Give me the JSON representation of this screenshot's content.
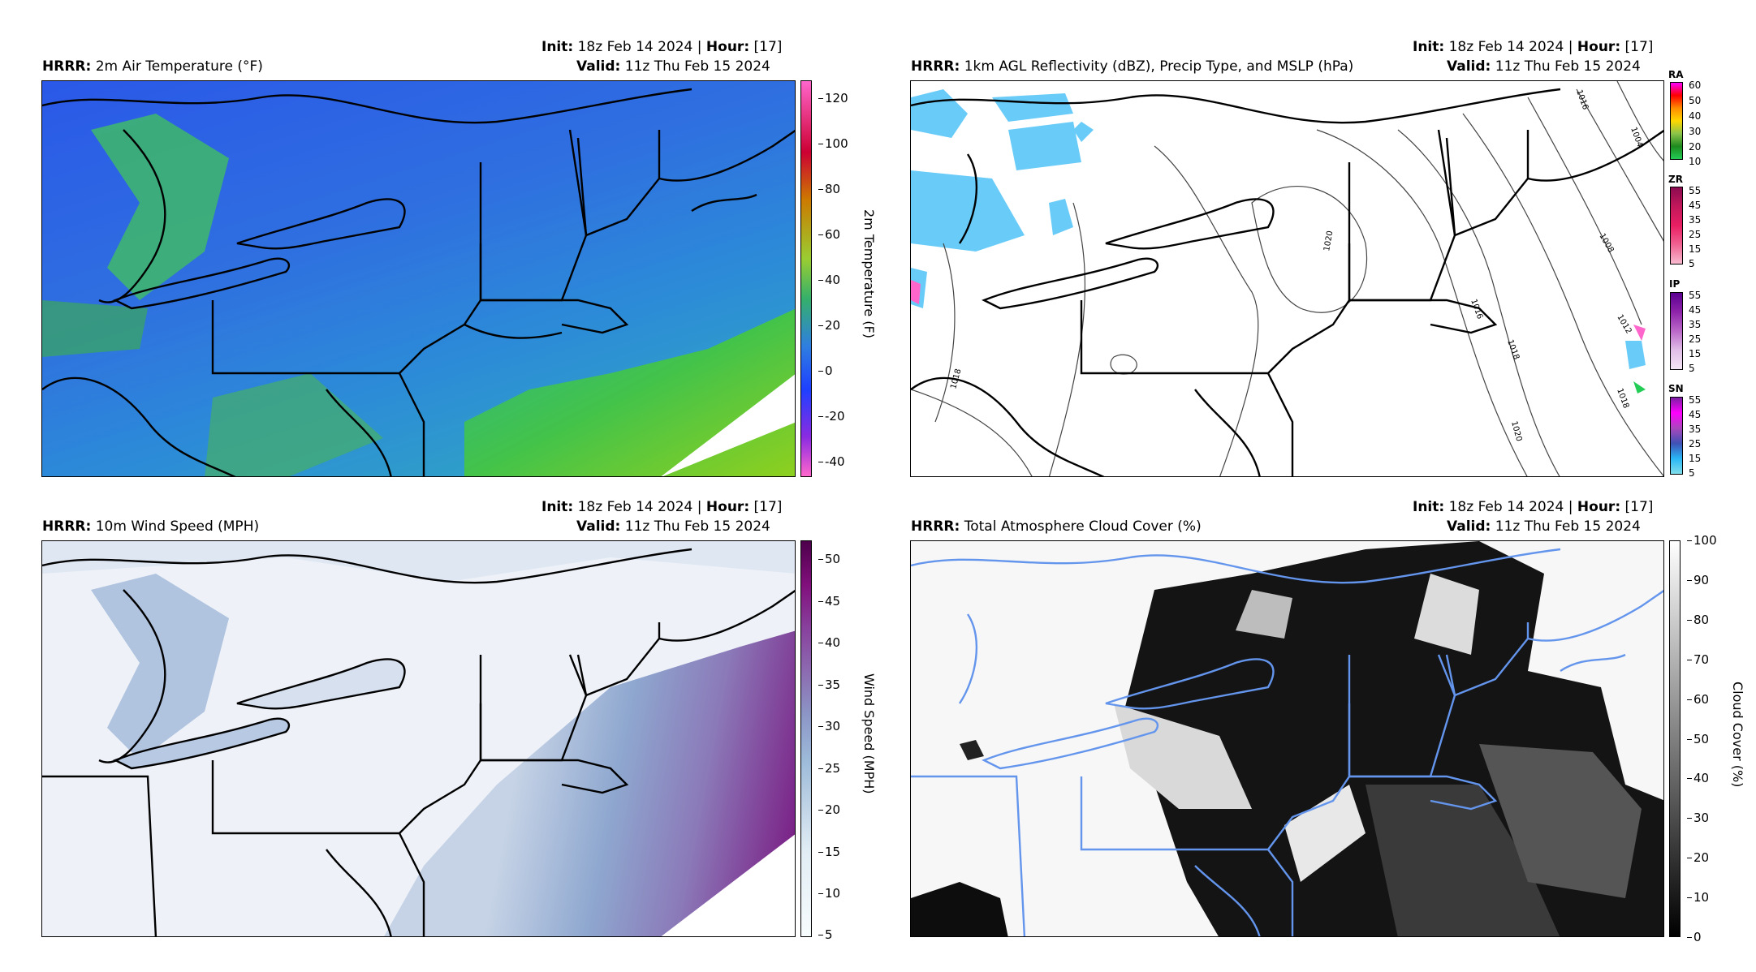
{
  "panels": {
    "temp": {
      "model": "HRRR",
      "field": "2m Air Temperature (°F)",
      "init_label": "Init",
      "init_value": "18z Feb 14 2024",
      "hour_label": "Hour",
      "hour_value": "[17]",
      "valid_label": "Valid",
      "valid_value": "11z Thu Feb 15 2024",
      "colorbar_label": "2m Temperature (F)",
      "colorbar_ticks": [
        "120",
        "100",
        "80",
        "60",
        "40",
        "20",
        "0",
        "-20",
        "-40"
      ]
    },
    "refl": {
      "model": "HRRR",
      "field": "1km AGL Reflectivity (dBZ), Precip Type, and MSLP (hPa)",
      "init_label": "Init",
      "init_value": "18z Feb 14 2024",
      "hour_label": "Hour",
      "hour_value": "[17]",
      "valid_label": "Valid",
      "valid_value": "11z Thu Feb 15 2024",
      "isobar_labels": [
        "1018",
        "1020",
        "1016",
        "1018",
        "1020",
        "1016",
        "1012",
        "1008",
        "1004",
        "1016",
        "1018"
      ],
      "precip_types": [
        {
          "name": "RA",
          "ticks": [
            "60",
            "50",
            "40",
            "30",
            "20",
            "10"
          ]
        },
        {
          "name": "ZR",
          "ticks": [
            "55",
            "45",
            "35",
            "25",
            "15",
            "5"
          ]
        },
        {
          "name": "IP",
          "ticks": [
            "55",
            "45",
            "35",
            "25",
            "15",
            "5"
          ]
        },
        {
          "name": "SN",
          "ticks": [
            "55",
            "45",
            "35",
            "25",
            "15",
            "5"
          ]
        }
      ]
    },
    "wind": {
      "model": "HRRR",
      "field": "10m Wind Speed (MPH)",
      "init_label": "Init",
      "init_value": "18z Feb 14 2024",
      "hour_label": "Hour",
      "hour_value": "[17]",
      "valid_label": "Valid",
      "valid_value": "11z Thu Feb 15 2024",
      "colorbar_label": "Wind Speed (MPH)",
      "colorbar_ticks": [
        "50",
        "45",
        "40",
        "35",
        "30",
        "25",
        "20",
        "15",
        "10",
        "5"
      ]
    },
    "cloud": {
      "model": "HRRR",
      "field": "Total Atmosphere Cloud Cover (%)",
      "init_label": "Init",
      "init_value": "18z Feb 14 2024",
      "hour_label": "Hour",
      "hour_value": "[17]",
      "valid_label": "Valid",
      "valid_value": "11z Thu Feb 15 2024",
      "colorbar_label": "Cloud Cover (%)",
      "colorbar_ticks": [
        "100",
        "90",
        "80",
        "70",
        "60",
        "50",
        "40",
        "30",
        "20",
        "10",
        "0"
      ]
    }
  },
  "colors": {
    "temp_ramp": [
      "#ff66cc",
      "#8a2be2",
      "#1e40ff",
      "#2f7fe0",
      "#35b06a",
      "#9acd32",
      "#ff8c00",
      "#cc0000",
      "#ff66aa"
    ],
    "wind_ramp": [
      "#f7f9fc",
      "#c6d3e6",
      "#8ea7cf",
      "#8b79b8",
      "#8d3e9c",
      "#6b006b"
    ],
    "cloud_ramp": [
      "#000000",
      "#ffffff"
    ],
    "cloud_border": "#6495ed"
  }
}
